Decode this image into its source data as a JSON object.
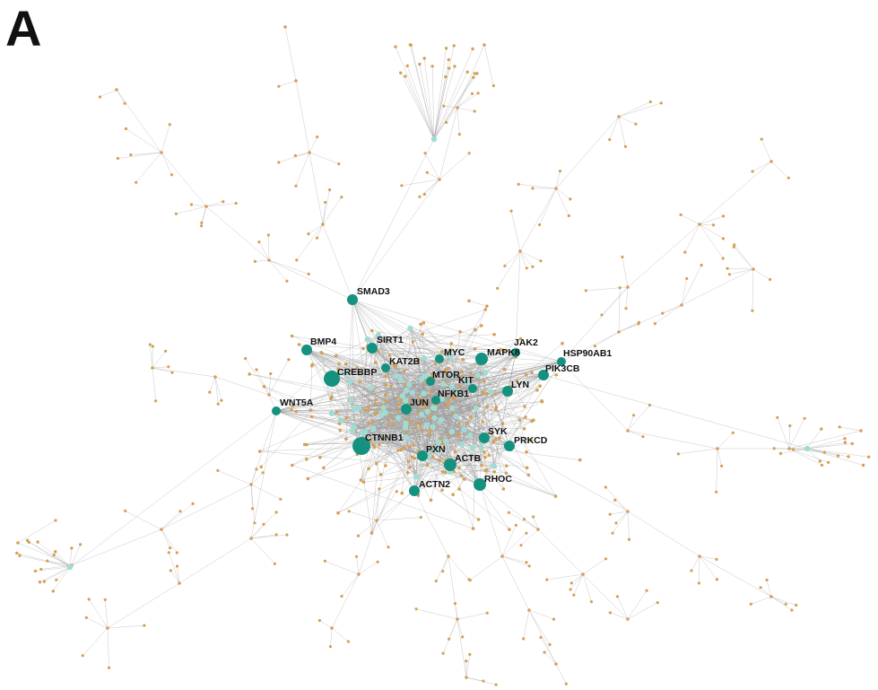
{
  "figure": {
    "panel_label": "A"
  },
  "colors": {
    "edge": "#9a9a9a",
    "peripheral_node": "#d4a055",
    "secondary_node": "#9fdcd6",
    "hub_node": "#14917f"
  },
  "hubs": [
    {
      "id": "SMAD3",
      "label": "SMAD3"
    },
    {
      "id": "SIRT1",
      "label": "SIRT1"
    },
    {
      "id": "BMP4",
      "label": "BMP4"
    },
    {
      "id": "KAT2B",
      "label": "KAT2B"
    },
    {
      "id": "CREBBP",
      "label": "CREBBP"
    },
    {
      "id": "MYC",
      "label": "MYC"
    },
    {
      "id": "MAPK8",
      "label": "MAPK8"
    },
    {
      "id": "JAK2",
      "label": "JAK2"
    },
    {
      "id": "HSP90AB1",
      "label": "HSP90AB1"
    },
    {
      "id": "PIK3CB",
      "label": "PIK3CB"
    },
    {
      "id": "MTOR",
      "label": "MTOR"
    },
    {
      "id": "KIT",
      "label": "KIT"
    },
    {
      "id": "LYN",
      "label": "LYN"
    },
    {
      "id": "NFKB1",
      "label": "NFKB1"
    },
    {
      "id": "JUN",
      "label": "JUN"
    },
    {
      "id": "WNT5A",
      "label": "WNT5A"
    },
    {
      "id": "SYK",
      "label": "SYK"
    },
    {
      "id": "CTNNB1",
      "label": "CTNNB1"
    },
    {
      "id": "PRKCD",
      "label": "PRKCD"
    },
    {
      "id": "PXN",
      "label": "PXN"
    },
    {
      "id": "ACTB",
      "label": "ACTB"
    },
    {
      "id": "RHOC",
      "label": "RHOC"
    },
    {
      "id": "ACTN2",
      "label": "ACTN2"
    }
  ]
}
